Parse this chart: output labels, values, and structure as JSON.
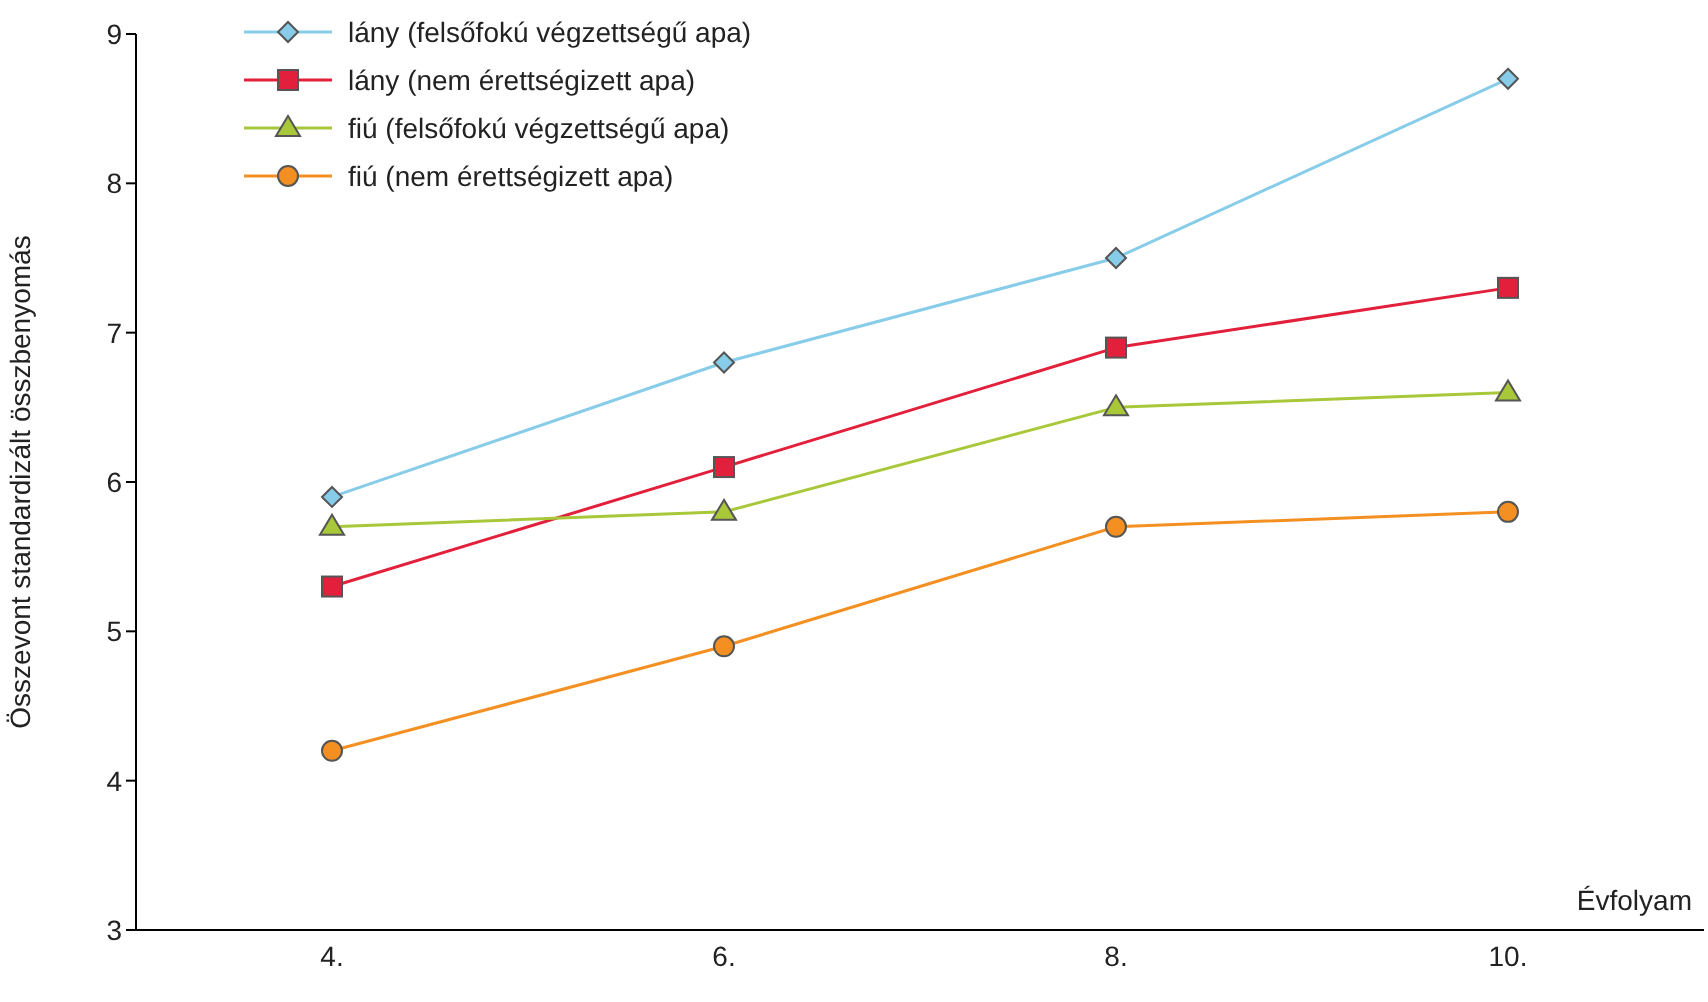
{
  "chart_data": {
    "type": "line",
    "categories": [
      "4.",
      "6.",
      "8.",
      "10."
    ],
    "ylabel": "Összevont standardizált összbenyomás",
    "xlabel": "Évfolyam",
    "ylim": [
      3,
      9
    ],
    "yticks": [
      3,
      4,
      5,
      6,
      7,
      8,
      9
    ],
    "grid": false,
    "legend": "top left",
    "series": [
      {
        "name": "lány (felsőfokú végzettségű apa)",
        "color": "#87cce8",
        "marker": "diamond",
        "values": [
          5.9,
          6.8,
          7.5,
          8.7
        ]
      },
      {
        "name": "lány (nem érettségizett apa)",
        "color": "#e3203b",
        "marker": "square",
        "values": [
          5.3,
          6.1,
          6.9,
          7.3
        ]
      },
      {
        "name": "fiú (felsőfokú végzettségű apa)",
        "color": "#a8c83a",
        "marker": "triangle",
        "values": [
          5.7,
          5.8,
          6.5,
          6.6
        ]
      },
      {
        "name": "fiú (nem érettségizett apa)",
        "color": "#f39021",
        "marker": "circle",
        "values": [
          4.2,
          4.9,
          5.7,
          5.8
        ]
      }
    ]
  }
}
